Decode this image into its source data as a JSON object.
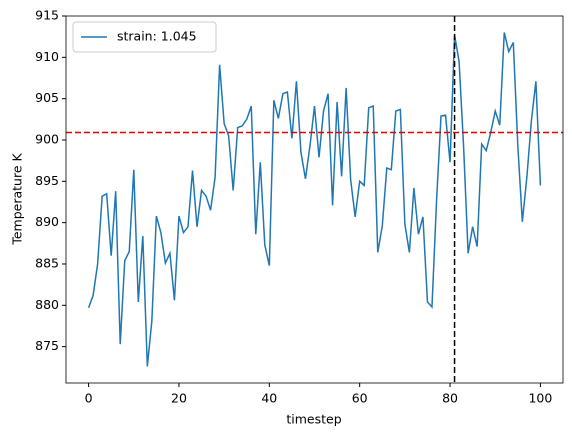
{
  "chart_data": {
    "type": "line",
    "xlabel": "timestep",
    "ylabel": "Temperature K",
    "x": [
      0,
      1,
      2,
      3,
      4,
      5,
      6,
      7,
      8,
      9,
      10,
      11,
      12,
      13,
      14,
      15,
      16,
      17,
      18,
      19,
      20,
      21,
      22,
      23,
      24,
      25,
      26,
      27,
      28,
      29,
      30,
      31,
      32,
      33,
      34,
      35,
      36,
      37,
      38,
      39,
      40,
      41,
      42,
      43,
      44,
      45,
      46,
      47,
      48,
      49,
      50,
      51,
      52,
      53,
      54,
      55,
      56,
      57,
      58,
      59,
      60,
      61,
      62,
      63,
      64,
      65,
      66,
      67,
      68,
      69,
      70,
      71,
      72,
      73,
      74,
      75,
      76,
      77,
      78,
      79,
      80,
      81,
      82,
      83,
      84,
      85,
      86,
      87,
      88,
      89,
      90,
      91,
      92,
      93,
      94,
      95,
      96,
      97,
      98,
      99,
      100
    ],
    "series": [
      {
        "name": "strain: 1.045",
        "color": "#1f77b4",
        "values": [
          879.7,
          881.2,
          885,
          893.2,
          893.5,
          886,
          893.8,
          875.3,
          885.4,
          886.5,
          896.4,
          880.4,
          888.4,
          872.6,
          878.1,
          890.8,
          888.8,
          885.1,
          886.3,
          880.6,
          890.8,
          888.8,
          889.5,
          896.3,
          889.5,
          893.9,
          893.2,
          891.5,
          895.5,
          909.1,
          902,
          900.5,
          893.9,
          901.5,
          901.7,
          902.5,
          904.1,
          888.6,
          897.3,
          887.3,
          884.8,
          904.8,
          902.6,
          905.6,
          905.8,
          900.2,
          907.1,
          898.5,
          895.3,
          899.3,
          904.1,
          897.9,
          903.5,
          905.6,
          892.1,
          904.6,
          895.6,
          906.3,
          895.2,
          890.7,
          895,
          894.5,
          903.9,
          904.1,
          886.4,
          889.6,
          896.6,
          896.4,
          903.5,
          903.7,
          889.8,
          886.4,
          894.2,
          888.6,
          890.7,
          880.4,
          879.8,
          892.5,
          902.9,
          903,
          897.3,
          912.7,
          909.5,
          899.2,
          886.3,
          889.5,
          887.1,
          899.5,
          898.7,
          900.9,
          903.5,
          901.8,
          913,
          910.7,
          911.8,
          899.3,
          890.1,
          895.5,
          902.3,
          907.1,
          894.5
        ]
      }
    ],
    "hline": {
      "value": 900.9,
      "color": "#e00000"
    },
    "vline": {
      "value": 81,
      "color": "#000000"
    },
    "xlim": [
      -5,
      105
    ],
    "xticks": [
      0,
      20,
      40,
      60,
      80,
      100
    ],
    "ylim": [
      870.6,
      915
    ],
    "yticks": [
      875,
      880,
      885,
      890,
      895,
      900,
      905,
      910,
      915
    ],
    "legend": "upper left",
    "grid": false
  }
}
